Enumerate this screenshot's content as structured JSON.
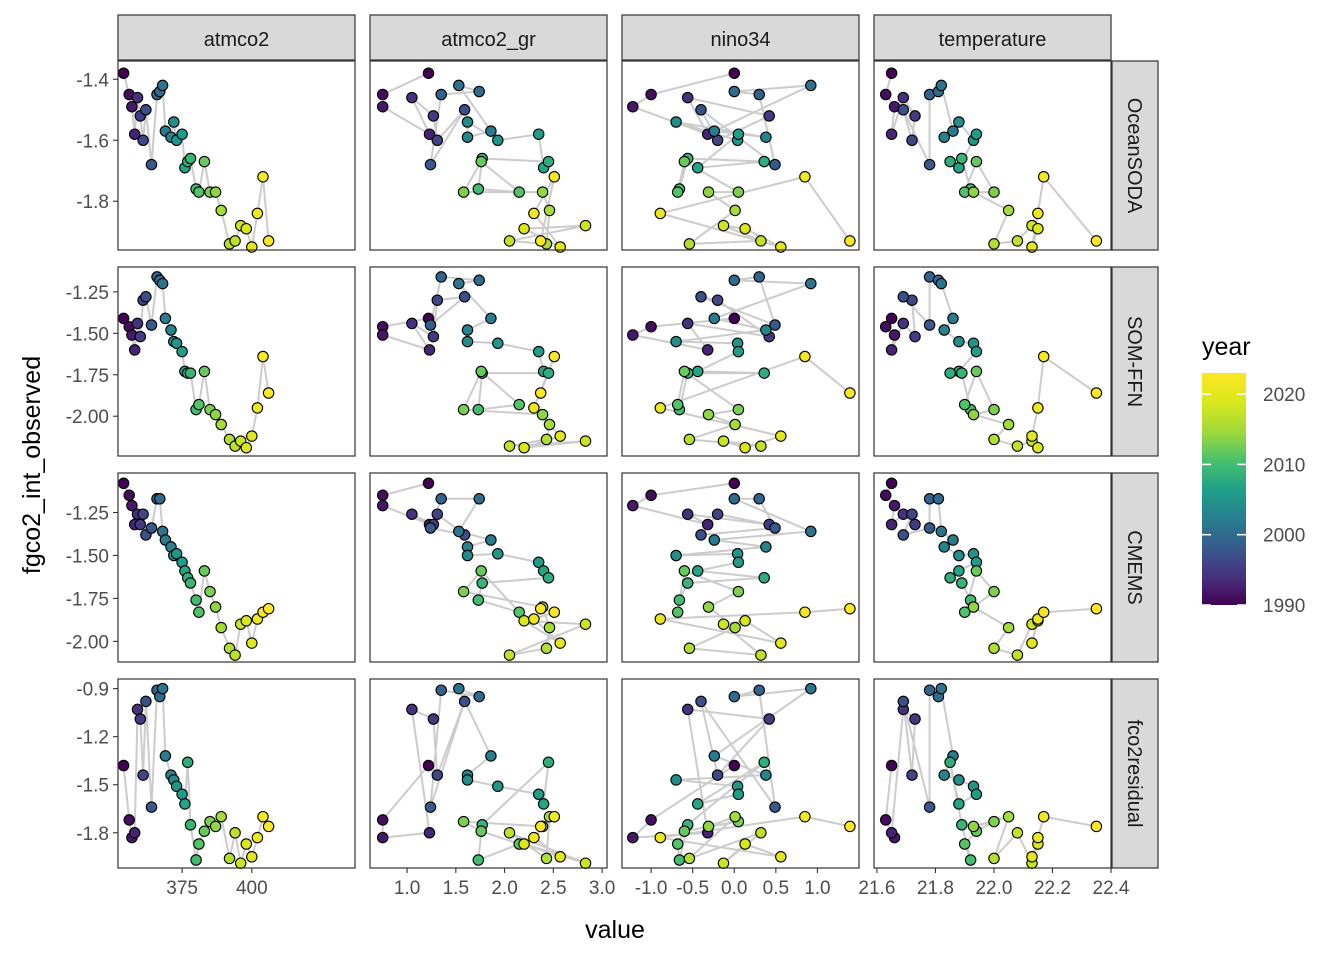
{
  "chart_data": {
    "type": "scatter",
    "xlabel": "value",
    "ylabel": "fgco2_int_observed",
    "columns": [
      {
        "name": "atmco2",
        "xlim": [
          352,
          437
        ],
        "ticks": [
          375,
          400
        ],
        "tick_labels": [
          "375",
          "400"
        ]
      },
      {
        "name": "atmco2_gr",
        "xlim": [
          0.62,
          3.05
        ],
        "ticks": [
          1.0,
          1.5,
          2.0,
          2.5,
          3.0
        ],
        "tick_labels": [
          "1.0",
          "1.5",
          "2.0",
          "2.5",
          "3.0"
        ]
      },
      {
        "name": "nino34",
        "xlim": [
          -1.35,
          1.5
        ],
        "ticks": [
          -1.0,
          -0.5,
          0.0,
          0.5,
          1.0
        ],
        "tick_labels": [
          "-1.0",
          "-0.5",
          "0.0",
          "0.5",
          "1.0"
        ]
      },
      {
        "name": "temperature",
        "xlim": [
          21.59,
          22.4
        ],
        "ticks": [
          21.6,
          21.8,
          22.0,
          22.2,
          22.4
        ],
        "tick_labels": [
          "21.6",
          "21.8",
          "22.0",
          "22.2",
          "22.4"
        ]
      }
    ],
    "rows": [
      {
        "name": "OceanSODA",
        "ylim": [
          -1.96,
          -1.34
        ],
        "ticks": [
          -1.4,
          -1.6,
          -1.8
        ],
        "tick_labels": [
          "-1.4",
          "-1.6",
          "-1.8"
        ],
        "y": [
          -1.38,
          -1.45,
          -1.49,
          -1.58,
          -1.46,
          -1.52,
          -1.6,
          -1.5,
          -1.68,
          -1.45,
          -1.44,
          -1.42,
          -1.57,
          -1.59,
          -1.54,
          -1.6,
          -1.58,
          -1.69,
          -1.67,
          -1.66,
          -1.76,
          -1.77,
          -1.67,
          -1.77,
          -1.77,
          -1.83,
          -1.94,
          -1.93,
          -1.88,
          -1.89,
          -1.95,
          -1.84,
          -1.72,
          -1.93
        ]
      },
      {
        "name": "SOM-FFN",
        "ylim": [
          -2.24,
          -1.1
        ],
        "ticks": [
          -1.25,
          -1.5,
          -1.75,
          -2.0
        ],
        "tick_labels": [
          "-1.25",
          "-1.50",
          "-1.75",
          "-2.00"
        ],
        "y": [
          -1.41,
          -1.46,
          -1.51,
          -1.6,
          -1.44,
          -1.52,
          -1.3,
          -1.28,
          -1.45,
          -1.16,
          -1.18,
          -1.2,
          -1.41,
          -1.48,
          -1.55,
          -1.56,
          -1.61,
          -1.73,
          -1.74,
          -1.74,
          -1.96,
          -1.93,
          -1.73,
          -1.96,
          -1.99,
          -2.05,
          -2.14,
          -2.18,
          -2.15,
          -2.19,
          -2.12,
          -1.95,
          -1.64,
          -1.86
        ]
      },
      {
        "name": "CMEMS",
        "ylim": [
          -2.12,
          -1.02
        ],
        "ticks": [
          -1.25,
          -1.5,
          -1.75,
          -2.0
        ],
        "tick_labels": [
          "-1.25",
          "-1.50",
          "-1.75",
          "-2.00"
        ],
        "y": [
          -1.08,
          -1.15,
          -1.21,
          -1.32,
          -1.26,
          -1.32,
          -1.26,
          -1.38,
          -1.34,
          -1.17,
          -1.17,
          -1.36,
          -1.41,
          -1.45,
          -1.5,
          -1.49,
          -1.54,
          -1.59,
          -1.63,
          -1.66,
          -1.76,
          -1.83,
          -1.59,
          -1.71,
          -1.8,
          -1.92,
          -2.04,
          -2.08,
          -1.9,
          -1.88,
          -2.01,
          -1.87,
          -1.83,
          -1.81
        ]
      },
      {
        "name": "fco2residual",
        "ylim": [
          -2.02,
          -0.84
        ],
        "ticks": [
          -0.9,
          -1.2,
          -1.5,
          -1.8
        ],
        "tick_labels": [
          "-0.9",
          "-1.2",
          "-1.5",
          "-1.8"
        ],
        "y": [
          -1.38,
          -1.72,
          -1.83,
          -1.8,
          -1.03,
          -1.09,
          -1.44,
          -0.98,
          -1.64,
          -0.91,
          -0.95,
          -0.9,
          -1.32,
          -1.44,
          -1.47,
          -1.51,
          -1.56,
          -1.62,
          -1.36,
          -1.75,
          -1.97,
          -1.87,
          -1.79,
          -1.73,
          -1.76,
          -1.7,
          -1.96,
          -1.8,
          -1.99,
          -1.87,
          -1.95,
          -1.83,
          -1.7,
          -1.76
        ]
      }
    ],
    "x_values": {
      "atmco2": [
        354,
        356,
        357,
        358,
        359,
        360,
        361,
        362,
        364,
        366,
        367,
        368,
        369,
        371,
        372,
        373,
        375,
        376,
        377,
        378,
        380,
        381,
        383,
        385,
        387,
        389,
        392,
        394,
        396,
        398,
        400,
        402,
        404,
        406
      ],
      "atmco2_gr": [
        1.22,
        0.75,
        0.75,
        1.23,
        1.05,
        1.27,
        1.31,
        1.59,
        1.24,
        1.35,
        1.74,
        1.53,
        1.86,
        1.62,
        1.62,
        1.93,
        2.35,
        2.4,
        2.45,
        1.77,
        1.73,
        2.15,
        1.76,
        1.58,
        2.39,
        2.46,
        2.43,
        2.05,
        2.83,
        2.2,
        2.57,
        2.3,
        2.51,
        2.37
      ],
      "nino34": [
        0.0,
        -1.0,
        -1.22,
        -0.32,
        -0.56,
        0.42,
        -0.2,
        -0.4,
        0.49,
        0.3,
        0.0,
        0.92,
        -0.24,
        0.38,
        -0.7,
        0.04,
        0.05,
        -0.44,
        0.36,
        -0.56,
        -0.66,
        -0.68,
        -0.6,
        0.05,
        -0.31,
        0.01,
        -0.54,
        0.32,
        -0.13,
        0.13,
        0.56,
        -0.89,
        0.85,
        1.39
      ],
      "temperature": [
        21.65,
        21.63,
        21.66,
        21.65,
        21.69,
        21.73,
        21.72,
        21.69,
        21.78,
        21.78,
        21.81,
        21.82,
        21.86,
        21.83,
        21.88,
        21.93,
        21.94,
        21.88,
        21.85,
        21.89,
        21.92,
        21.9,
        21.94,
        22.0,
        21.93,
        22.05,
        22.0,
        22.08,
        22.13,
        22.15,
        22.13,
        22.15,
        22.17,
        22.35
      ]
    },
    "color_years": [
      1990,
      1991,
      1992,
      1993,
      1994,
      1995,
      1996,
      1997,
      1998,
      1999,
      2000,
      2001,
      2002,
      2003,
      2004,
      2005,
      2006,
      2007,
      2008,
      2009,
      2010,
      2011,
      2012,
      2013,
      2014,
      2015,
      2016,
      2017,
      2018,
      2019,
      2020,
      2021,
      2022,
      2023
    ],
    "legend": {
      "title": "year",
      "ticks": [
        1990,
        2000,
        2010,
        2020
      ],
      "tick_labels": [
        "1990",
        "2000",
        "2010",
        "2020"
      ],
      "range": [
        1990,
        2023
      ],
      "placement": "right"
    },
    "colors": {
      "path": "#cccccc",
      "point_stroke": "#000000",
      "strip_fill": "#d9d9d9",
      "panel_border": "#333333"
    }
  }
}
